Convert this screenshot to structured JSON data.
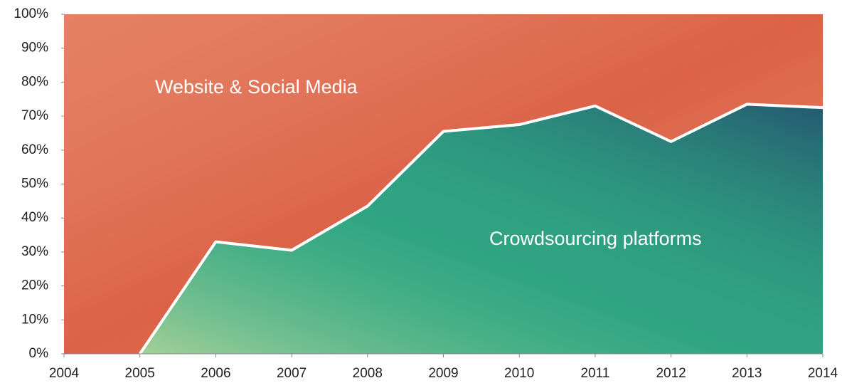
{
  "chart_data": {
    "type": "area",
    "stacked": true,
    "x": [
      2004,
      2005,
      2006,
      2007,
      2008,
      2009,
      2010,
      2011,
      2012,
      2013,
      2014
    ],
    "series": [
      {
        "name": "Crowdsourcing platforms",
        "color": "#2f9e80",
        "values": [
          null,
          0,
          33,
          30.5,
          43.5,
          65.5,
          67.5,
          73,
          62.5,
          73.5,
          72.5
        ]
      },
      {
        "name": "Website & Social Media",
        "color": "#e2704f",
        "values": [
          100,
          100,
          67,
          69.5,
          56.5,
          34.5,
          32.5,
          27,
          37.5,
          26.5,
          27.5
        ]
      }
    ],
    "xlim": [
      2004,
      2014
    ],
    "xticks": [
      2004,
      2005,
      2006,
      2007,
      2008,
      2009,
      2010,
      2011,
      2012,
      2013,
      2014
    ],
    "ylim": [
      0,
      100
    ],
    "yticks": [
      {
        "value": 0,
        "label": "0%"
      },
      {
        "value": 10,
        "label": "10%"
      },
      {
        "value": 20,
        "label": "20%"
      },
      {
        "value": 30,
        "label": "30%"
      },
      {
        "value": 40,
        "label": "40%"
      },
      {
        "value": 50,
        "label": "50%"
      },
      {
        "value": 60,
        "label": "60%"
      },
      {
        "value": 70,
        "label": "70%"
      },
      {
        "value": 80,
        "label": "80%"
      },
      {
        "value": 90,
        "label": "90%"
      },
      {
        "value": 100,
        "label": "100%"
      }
    ],
    "grid": false
  }
}
